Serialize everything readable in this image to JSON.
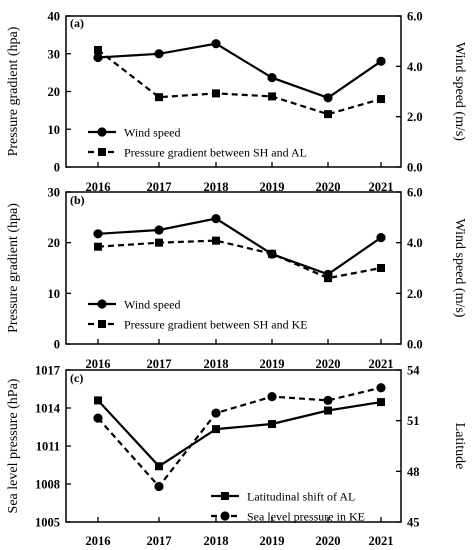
{
  "chart_data": [
    {
      "type": "line",
      "panel_label": "(a)",
      "x": [
        "2016",
        "2017",
        "2018",
        "2019",
        "2020",
        "2021"
      ],
      "ylabel": "Pressure gradient (hpa)",
      "ylim": [
        0,
        40
      ],
      "yticks": [
        "0",
        "10",
        "20",
        "30",
        "40"
      ],
      "y2label": "Wind speed (m/s)",
      "y2lim": [
        0.0,
        6.0
      ],
      "y2ticks": [
        "0.0",
        "2.0",
        "4.0",
        "6.0"
      ],
      "legend_position": "bottom-left",
      "series": [
        {
          "name": "Wind speed",
          "axis": "right",
          "style": "solid",
          "marker": "circle",
          "values": [
            4.35,
            4.5,
            4.9,
            3.55,
            2.75,
            4.2
          ]
        },
        {
          "name": "Pressure gradient between SH and AL",
          "axis": "left",
          "style": "dashed",
          "marker": "square",
          "values": [
            31,
            18.5,
            19.5,
            18.7,
            14,
            18
          ]
        }
      ]
    },
    {
      "type": "line",
      "panel_label": "(b)",
      "x": [
        "2016",
        "2017",
        "2018",
        "2019",
        "2020",
        "2021"
      ],
      "ylabel": "Pressure gradient (hpa)",
      "ylim": [
        0,
        30
      ],
      "yticks": [
        "0",
        "10",
        "20",
        "30"
      ],
      "y2label": "Wind speed (m/s)",
      "y2lim": [
        0.0,
        6.0
      ],
      "y2ticks": [
        "0.0",
        "2.0",
        "4.0",
        "6.0"
      ],
      "legend_position": "bottom-left",
      "series": [
        {
          "name": "Wind speed",
          "axis": "right",
          "style": "solid",
          "marker": "circle",
          "values": [
            4.35,
            4.5,
            4.95,
            3.55,
            2.75,
            4.2
          ]
        },
        {
          "name": "Pressure gradient between SH and KE",
          "axis": "left",
          "style": "dashed",
          "marker": "square",
          "values": [
            19.2,
            20,
            20.4,
            17.8,
            13,
            15
          ]
        }
      ]
    },
    {
      "type": "line",
      "panel_label": "(c)",
      "x": [
        "2016",
        "2017",
        "2018",
        "2019",
        "2020",
        "2021"
      ],
      "ylabel": "Sea level pressure (hPa)",
      "ylim": [
        1005,
        1017
      ],
      "yticks": [
        "1005",
        "1008",
        "1011",
        "1014",
        "1017"
      ],
      "y2label": "Latitude",
      "y2lim": [
        45,
        54
      ],
      "y2ticks": [
        "45",
        "48",
        "51",
        "54"
      ],
      "legend_position": "bottom-right",
      "series": [
        {
          "name": "Latitudinal shift of AL",
          "axis": "right",
          "style": "solid",
          "marker": "square",
          "values": [
            52.2,
            48.3,
            50.5,
            50.8,
            51.6,
            52.1
          ]
        },
        {
          "name": "Sea level pressure in KE",
          "axis": "left",
          "style": "dashed",
          "marker": "circle",
          "values": [
            1013.2,
            1007.8,
            1013.6,
            1014.9,
            1014.6,
            1015.6
          ]
        }
      ]
    }
  ]
}
